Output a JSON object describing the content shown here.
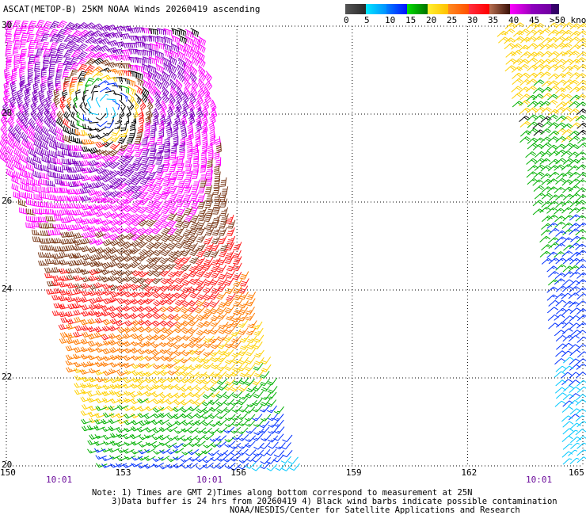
{
  "title": "ASCAT(METOP-B) 25KM NOAA Winds 20260419 ascending",
  "legend": {
    "labels": [
      "0",
      "5",
      "10",
      "15",
      "20",
      "25",
      "30",
      "35",
      "40",
      "45",
      ">50 knots"
    ],
    "bins": [
      {
        "range": "0-5",
        "from": "#555555",
        "to": "#2a2a2a"
      },
      {
        "range": "5-10",
        "from": "#00e8ff",
        "to": "#0090ff"
      },
      {
        "range": "10-15",
        "from": "#0080ff",
        "to": "#0010ff"
      },
      {
        "range": "15-20",
        "from": "#00e000",
        "to": "#007000"
      },
      {
        "range": "20-25",
        "from": "#fff030",
        "to": "#ffc000"
      },
      {
        "range": "25-30",
        "from": "#ff8a20",
        "to": "#ff5000"
      },
      {
        "range": "30-35",
        "from": "#ff3040",
        "to": "#ff0000"
      },
      {
        "range": "35-40",
        "from": "#b87050",
        "to": "#3a1008"
      },
      {
        "range": "40-45",
        "from": "#ff00ff",
        "to": "#a000c0"
      },
      {
        "range": "45-50",
        "from": "#9000c0",
        "to": "#7000a0"
      },
      {
        "range": ">50",
        "from": "#380070",
        "to": "#300060"
      }
    ]
  },
  "axes": {
    "lon_ticks": [
      "150",
      "153",
      "156",
      "159",
      "162",
      "165"
    ],
    "lat_ticks": [
      "30",
      "28",
      "26",
      "24",
      "22",
      "20"
    ]
  },
  "times": [
    "10:01",
    "10:01",
    "10:01"
  ],
  "notes": {
    "line1": "Note: 1) Times are GMT 2)Times along bottom correspond to measurement at 25N",
    "line2": "3)Data buffer is 24 hrs from 20260419 4) Black wind barbs indicate possible contamination",
    "line3": "NOAA/NESDIS/Center for Satellite Applications and Research"
  },
  "colors": {
    "barb_bins": [
      "#555555",
      "#00c8ff",
      "#0030ff",
      "#00b000",
      "#ffd000",
      "#ff7a00",
      "#ff1a1a",
      "#7a3a1a",
      "#ff00ff",
      "#8000c0",
      "#2a0060"
    ],
    "contaminated": "#000000",
    "time_label": "#6a0a9a"
  }
}
